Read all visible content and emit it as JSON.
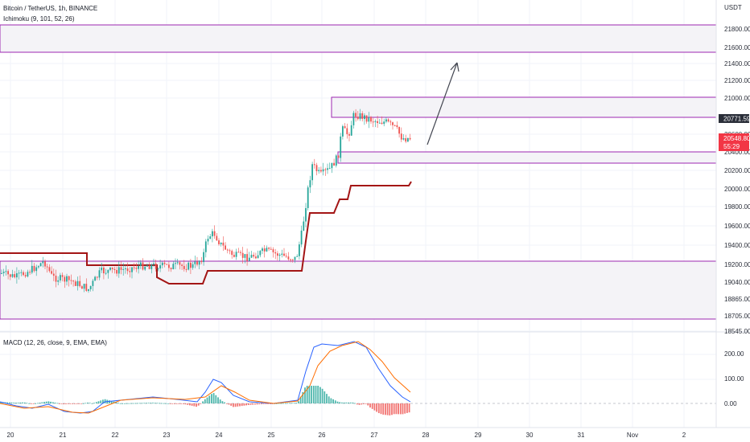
{
  "header": {
    "symbol_title": "Bitcoin / TetherUS, 1h, BINANCE",
    "indicator_label": "Ichimoku (9, 101, 52, 26)"
  },
  "macd": {
    "label": "MACD (12, 26, close, 9, EMA, EMA)",
    "axis_ticks": [
      "200.00",
      "100.00",
      "0.00"
    ]
  },
  "price_axis": {
    "currency": "USDT",
    "ticks": [
      "21800.00",
      "21600.00",
      "21400.00",
      "21200.00",
      "21000.00",
      "20600.00",
      "20400.00",
      "20200.00",
      "20000.00",
      "19800.00",
      "19600.00",
      "19400.00",
      "19200.00",
      "19040.00",
      "18865.00",
      "18705.00",
      "18545.00"
    ],
    "marked_price": "20771.59",
    "last_price": "20548.80",
    "countdown": "55:29"
  },
  "time_axis": {
    "ticks": [
      "20",
      "21",
      "22",
      "23",
      "24",
      "25",
      "26",
      "27",
      "28",
      "29",
      "30",
      "31",
      "Nov",
      "2"
    ]
  },
  "colors": {
    "zone_border": "#9c27b0",
    "kijun": "#a31515",
    "up": "#26a69a",
    "down": "#ef5350",
    "macd_line": "#2962ff",
    "signal_line": "#ff6d00",
    "arrow": "#434651"
  },
  "chart_data": {
    "type": "candlestick",
    "title": "Bitcoin / TetherUS, 1h, BINANCE",
    "x_range": [
      "20",
      "2"
    ],
    "y_range": [
      18545,
      21900
    ],
    "zones": [
      {
        "low": 21520,
        "high": 21820
      },
      {
        "low": 20770,
        "high": 21010
      },
      {
        "low": 20290,
        "high": 20400
      },
      {
        "low": 18690,
        "high": 19240
      }
    ],
    "kijun_line": [
      {
        "x": "20",
        "y": 19330
      },
      {
        "x": "21.6",
        "y": 19320
      },
      {
        "x": "21.6",
        "y": 19225
      },
      {
        "x": "22.9",
        "y": 19225
      },
      {
        "x": "22.9",
        "y": 19145
      },
      {
        "x": "23.8",
        "y": 19145
      },
      {
        "x": "23.8",
        "y": 19175
      },
      {
        "x": "25.55",
        "y": 19175
      },
      {
        "x": "25.8",
        "y": 19700
      },
      {
        "x": "26.3",
        "y": 19780
      },
      {
        "x": "26.5",
        "y": 19990
      },
      {
        "x": "27.7",
        "y": 20010
      }
    ],
    "projection_arrow": {
      "from": {
        "x": "27.7",
        "y": 20520
      },
      "to": {
        "x": "28.6",
        "y": 21420
      }
    },
    "macd_axis_ticks": [
      200,
      100,
      0
    ]
  }
}
